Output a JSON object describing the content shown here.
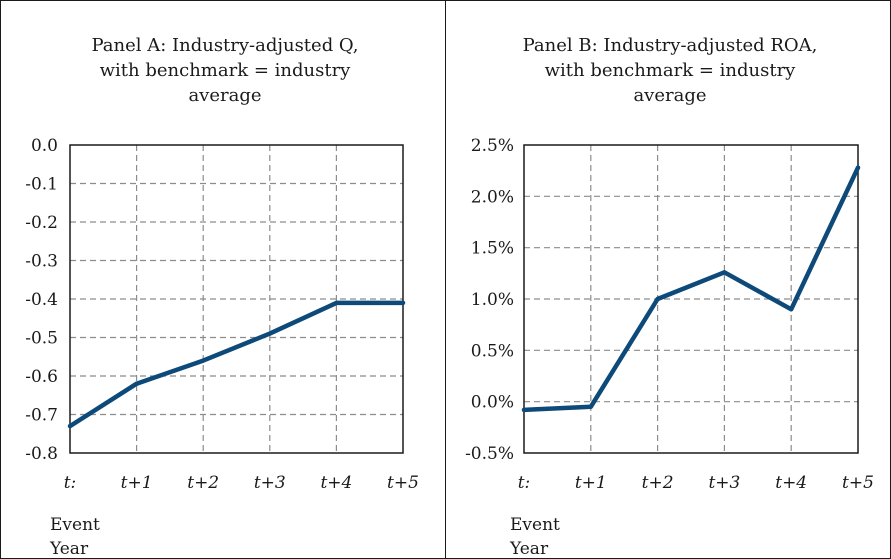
{
  "chart_data": [
    {
      "type": "line",
      "title": "Panel A: Industry-adjusted Q, with benchmark = industry average",
      "title_lines": [
        "Panel A: Industry-adjusted Q,",
        "with benchmark = industry",
        "average"
      ],
      "categories": [
        "t:",
        "t+1",
        "t+2",
        "t+3",
        "t+4",
        "t+5"
      ],
      "xlabel_lines": [
        "Event",
        "Year"
      ],
      "ylabel": "",
      "ylim": [
        -0.8,
        0.0
      ],
      "yticks": [
        "0.0",
        "-0.1",
        "-0.2",
        "-0.3",
        "-0.4",
        "-0.5",
        "-0.6",
        "-0.7",
        "-0.8"
      ],
      "grid": true,
      "series": [
        {
          "values": [
            -0.73,
            -0.62,
            -0.56,
            -0.49,
            -0.41,
            -0.41
          ],
          "color": "#0d4a7a"
        }
      ]
    },
    {
      "type": "line",
      "title": "Panel B: Industry-adjusted ROA, with benchmark = industry average",
      "title_lines": [
        "Panel B: Industry-adjusted ROA,",
        "with benchmark = industry",
        "average"
      ],
      "categories": [
        "t:",
        "t+1",
        "t+2",
        "t+3",
        "t+4",
        "t+5"
      ],
      "xlabel_lines": [
        "Event",
        "Year"
      ],
      "ylabel": "",
      "ylim": [
        -0.5,
        2.5
      ],
      "yticks": [
        "2.5%",
        "2.0%",
        "1.5%",
        "1.0%",
        "0.5%",
        "0.0%",
        "-0.5%"
      ],
      "grid": true,
      "series": [
        {
          "values": [
            -0.08,
            -0.05,
            1.0,
            1.26,
            0.9,
            2.28
          ],
          "color": "#0d4a7a"
        }
      ]
    }
  ]
}
